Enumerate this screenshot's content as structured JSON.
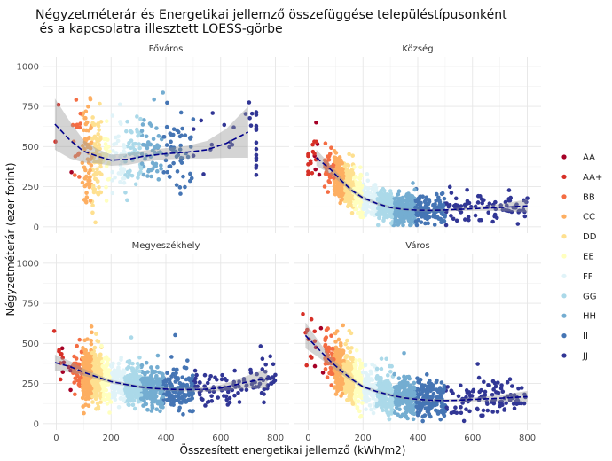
{
  "title_line1": "Négyzetméterár és Energetikai jellemző összefüggése településtípusonként",
  "title_line2": " és a kapcsolatra illesztett LOESS-görbe",
  "chart_data": {
    "type": "scatter",
    "xlabel": "Összesített energetikai jellemző (kWh/m2)",
    "ylabel": "Négyzetméterár (ezer forint)",
    "x_ticks": [
      0,
      200,
      400,
      600,
      800
    ],
    "y_ticks": [
      0,
      250,
      500,
      750,
      1000
    ],
    "legend_position": "right",
    "categories": [
      {
        "label": "AA",
        "color": "#a50026",
        "x_range": [
          10,
          60
        ]
      },
      {
        "label": "AA+",
        "color": "#d73027",
        "x_range": [
          -20,
          30
        ]
      },
      {
        "label": "BB",
        "color": "#f46d43",
        "x_range": [
          60,
          95
        ]
      },
      {
        "label": "CC",
        "color": "#fdae61",
        "x_range": [
          95,
          130
        ]
      },
      {
        "label": "DD",
        "color": "#fee090",
        "x_range": [
          130,
          165
        ]
      },
      {
        "label": "EE",
        "color": "#ffffbf",
        "x_range": [
          165,
          200
        ]
      },
      {
        "label": "FF",
        "color": "#e0f3f8",
        "x_range": [
          200,
          250
        ]
      },
      {
        "label": "GG",
        "color": "#abd9e9",
        "x_range": [
          250,
          310
        ]
      },
      {
        "label": "HH",
        "color": "#74add1",
        "x_range": [
          310,
          390
        ]
      },
      {
        "label": "II",
        "color": "#4575b4",
        "x_range": [
          390,
          500
        ]
      },
      {
        "label": "JJ",
        "color": "#313695",
        "x_range": [
          500,
          800
        ]
      }
    ],
    "panels": [
      {
        "name": "Főváros",
        "x_range": [
          -30,
          730
        ],
        "point_count": 400,
        "price_scale": 470,
        "price_noise": 190,
        "loess": [
          [
            -5,
            640
          ],
          [
            50,
            540
          ],
          [
            100,
            470
          ],
          [
            150,
            440
          ],
          [
            200,
            415
          ],
          [
            260,
            420
          ],
          [
            320,
            440
          ],
          [
            400,
            455
          ],
          [
            480,
            465
          ],
          [
            550,
            480
          ],
          [
            620,
            520
          ],
          [
            700,
            590
          ]
        ],
        "ci_half_width": [
          160,
          115,
          70,
          45,
          35,
          35,
          35,
          35,
          40,
          55,
          90,
          160
        ]
      },
      {
        "name": "Község",
        "x_range": [
          0,
          800
        ],
        "point_count": 1200,
        "price_scale": 175,
        "price_noise": 75,
        "loess": [
          [
            30,
            430
          ],
          [
            80,
            360
          ],
          [
            120,
            290
          ],
          [
            160,
            225
          ],
          [
            200,
            180
          ],
          [
            250,
            145
          ],
          [
            300,
            120
          ],
          [
            350,
            108
          ],
          [
            400,
            103
          ],
          [
            450,
            102
          ],
          [
            500,
            104
          ],
          [
            550,
            108
          ],
          [
            600,
            112
          ],
          [
            650,
            116
          ],
          [
            700,
            120
          ],
          [
            800,
            130
          ]
        ],
        "ci_half_width": [
          50,
          30,
          18,
          14,
          12,
          10,
          8,
          7,
          7,
          7,
          8,
          10,
          12,
          16,
          22,
          40
        ]
      },
      {
        "name": "Megyeszékhely",
        "x_range": [
          -20,
          800
        ],
        "point_count": 1200,
        "price_scale": 290,
        "price_noise": 95,
        "loess": [
          [
            -5,
            380
          ],
          [
            50,
            355
          ],
          [
            100,
            320
          ],
          [
            150,
            290
          ],
          [
            200,
            262
          ],
          [
            250,
            245
          ],
          [
            300,
            230
          ],
          [
            350,
            220
          ],
          [
            400,
            215
          ],
          [
            450,
            212
          ],
          [
            500,
            212
          ],
          [
            550,
            215
          ],
          [
            600,
            222
          ],
          [
            650,
            240
          ],
          [
            700,
            260
          ],
          [
            770,
            280
          ]
        ],
        "ci_half_width": [
          50,
          35,
          22,
          15,
          12,
          10,
          9,
          9,
          9,
          10,
          12,
          15,
          20,
          28,
          40,
          60
        ]
      },
      {
        "name": "Város",
        "x_range": [
          -20,
          800
        ],
        "point_count": 1200,
        "price_scale": 230,
        "price_noise": 90,
        "loess": [
          [
            -10,
            550
          ],
          [
            40,
            460
          ],
          [
            80,
            390
          ],
          [
            120,
            330
          ],
          [
            160,
            275
          ],
          [
            200,
            230
          ],
          [
            250,
            200
          ],
          [
            300,
            178
          ],
          [
            350,
            160
          ],
          [
            400,
            150
          ],
          [
            450,
            145
          ],
          [
            500,
            143
          ],
          [
            550,
            145
          ],
          [
            600,
            150
          ],
          [
            700,
            158
          ],
          [
            800,
            168
          ]
        ],
        "ci_half_width": [
          80,
          50,
          30,
          20,
          14,
          11,
          10,
          9,
          8,
          8,
          8,
          9,
          10,
          12,
          20,
          35
        ]
      }
    ]
  }
}
